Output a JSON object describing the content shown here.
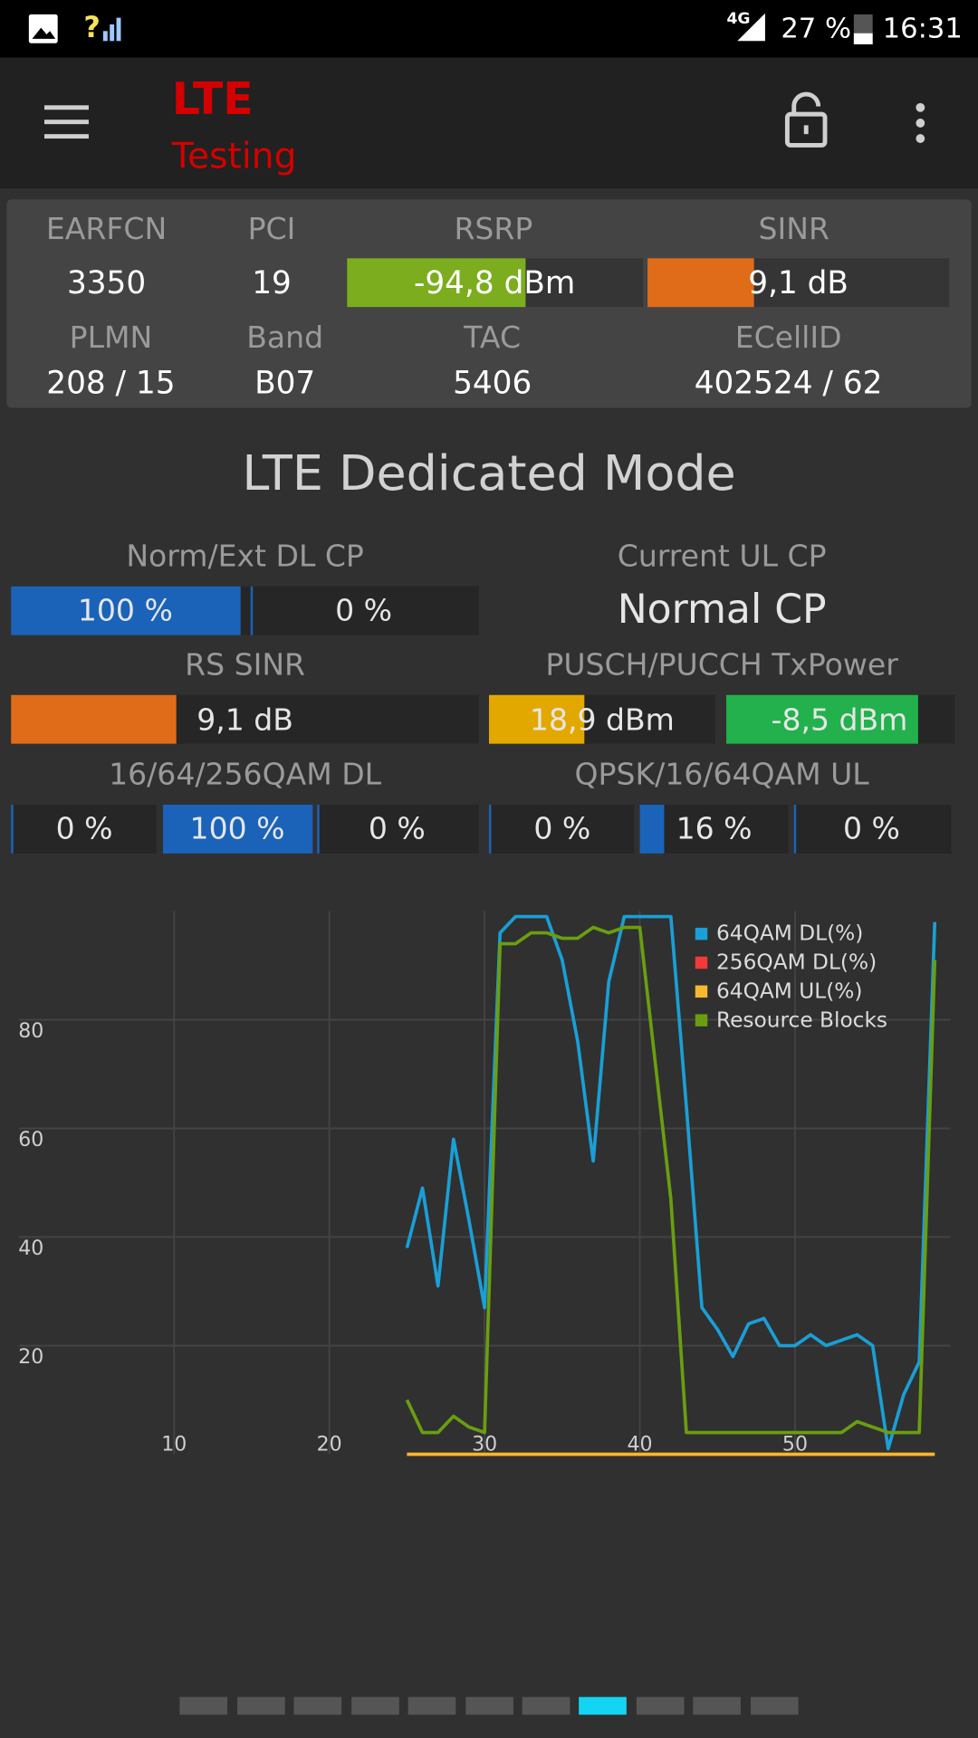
{
  "status_bar": {
    "sim": "?",
    "network": "4G",
    "battery": "27 %",
    "time": "16:31"
  },
  "app_bar": {
    "title": "LTE",
    "subtitle": "Testing"
  },
  "cell_info": {
    "row1": [
      {
        "label": "EARFCN",
        "value": "3350"
      },
      {
        "label": "PCI",
        "value": "19"
      },
      {
        "label": "RSRP",
        "value": "-94,8 dBm"
      },
      {
        "label": "SINR",
        "value": "9,1 dB"
      }
    ],
    "row2": [
      {
        "label": "PLMN",
        "value": "208 / 15"
      },
      {
        "label": "Band",
        "value": "B07"
      },
      {
        "label": "TAC",
        "value": "5406"
      },
      {
        "label": "ECellID",
        "value": "402524 / 62"
      }
    ]
  },
  "dedicated": {
    "title": "LTE Dedicated Mode",
    "dl_cp": {
      "label": "Norm/Ext DL CP",
      "cells": [
        "100 %",
        "0 %"
      ]
    },
    "ul_cp": {
      "label": "Current UL CP",
      "value": "Normal CP"
    },
    "rs_sinr": {
      "label": "RS SINR",
      "value": "9,1 dB"
    },
    "tx_power": {
      "label": "PUSCH/PUCCH TxPower",
      "cells": [
        "18,9 dBm",
        "-8,5 dBm"
      ]
    },
    "qam_dl": {
      "label": "16/64/256QAM DL",
      "cells": [
        "0 %",
        "100 %",
        "0 %"
      ]
    },
    "qam_ul": {
      "label": "QPSK/16/64QAM UL",
      "cells": [
        "0 %",
        "16 %",
        "0 %"
      ]
    }
  },
  "chart_data": {
    "type": "line",
    "x": [
      25,
      26,
      27,
      28,
      29,
      30,
      31,
      32,
      33,
      34,
      35,
      36,
      37,
      38,
      39,
      40,
      41,
      42,
      43,
      44,
      45,
      46,
      47,
      48,
      49,
      50,
      51,
      52,
      53,
      54,
      55,
      56,
      57,
      58,
      59
    ],
    "series": [
      {
        "name": "64QAM DL(%)",
        "color": "#1a9fd6",
        "values": [
          38,
          49,
          31,
          58,
          43,
          27,
          96,
          99,
          99,
          99,
          91,
          76,
          54,
          87,
          99,
          99,
          99,
          99,
          64,
          27,
          23,
          18,
          24,
          25,
          20,
          20,
          22,
          20,
          21,
          22,
          20,
          1,
          11,
          17,
          98
        ]
      },
      {
        "name": "256QAM DL(%)",
        "color": "#f23a3a",
        "values": [
          0,
          0,
          0,
          0,
          0,
          0,
          0,
          0,
          0,
          0,
          0,
          0,
          0,
          0,
          0,
          0,
          0,
          0,
          0,
          0,
          0,
          0,
          0,
          0,
          0,
          0,
          0,
          0,
          0,
          0,
          0,
          0,
          0,
          0,
          0
        ]
      },
      {
        "name": "64QAM UL(%)",
        "color": "#f5b82e",
        "values": [
          0,
          0,
          0,
          0,
          0,
          0,
          0,
          0,
          0,
          0,
          0,
          0,
          0,
          0,
          0,
          0,
          0,
          0,
          0,
          0,
          0,
          0,
          0,
          0,
          0,
          0,
          0,
          0,
          0,
          0,
          0,
          0,
          0,
          0,
          0
        ]
      },
      {
        "name": "Resource Blocks",
        "color": "#6a9e10",
        "values": [
          10,
          4,
          4,
          7,
          5,
          4,
          94,
          94,
          96,
          96,
          95,
          95,
          97,
          96,
          97,
          97,
          72,
          47,
          4,
          4,
          4,
          4,
          4,
          4,
          4,
          4,
          4,
          4,
          4,
          6,
          5,
          4,
          4,
          4,
          91
        ]
      }
    ],
    "xlim": [
      0,
      60
    ],
    "ylim": [
      0,
      100
    ],
    "xticks": [
      10,
      20,
      30,
      40,
      50
    ],
    "yticks": [
      20,
      40,
      60,
      80
    ],
    "grid": true,
    "legend": "top-right"
  }
}
